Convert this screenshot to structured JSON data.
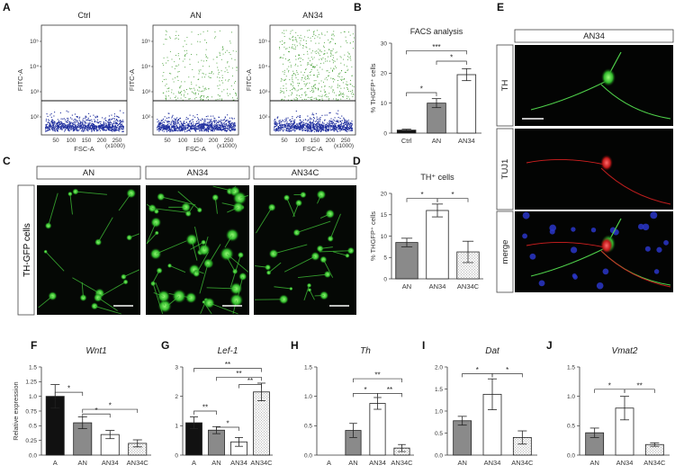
{
  "panels": {
    "A": {
      "label": "A",
      "plots": [
        {
          "title": "Ctrl",
          "ylabel": "FITC-A",
          "xlabel": "FSC-A",
          "density": 0.0
        },
        {
          "title": "AN",
          "ylabel": "FITC-A",
          "xlabel": "FSC-A",
          "density": 0.55
        },
        {
          "title": "AN34",
          "ylabel": "FITC-A",
          "xlabel": "FSC-A",
          "density": 1.0
        }
      ],
      "xticks": [
        "50",
        "100",
        "150",
        "200",
        "250"
      ],
      "xunit": "(x1000)",
      "yticks": [
        "10²",
        "10³",
        "10⁴",
        "10⁵"
      ],
      "colors": {
        "gate_low": "#1f2e9e",
        "gate_high": "#3b9a2b"
      }
    },
    "C": {
      "label": "C",
      "side_label": "TH-GFP cells",
      "columns": [
        "AN",
        "AN34",
        "AN34C"
      ]
    },
    "E": {
      "label": "E",
      "header": "AN34",
      "rows": [
        "TH",
        "TUJ1",
        "merge"
      ]
    }
  },
  "chart_data": [
    {
      "id": "B",
      "type": "bar",
      "label": "B",
      "title": "FACS analysis",
      "categories": [
        "Ctrl",
        "AN",
        "AN34"
      ],
      "values": [
        1,
        10,
        19.5
      ],
      "errors": [
        0.3,
        1.5,
        2.0
      ],
      "ylabel": "% THGFP⁺ cells",
      "ylim": [
        0,
        30
      ],
      "yticks": [
        0,
        10,
        20,
        30
      ],
      "fills": [
        "#111111",
        "#8a8a8a",
        "#ffffff"
      ],
      "sig": [
        {
          "a": 0,
          "b": 1,
          "y": 13.5,
          "text": "*"
        },
        {
          "a": 1,
          "b": 2,
          "y": 24.0,
          "text": "*"
        },
        {
          "a": 0,
          "b": 2,
          "y": 27.5,
          "text": "***"
        }
      ]
    },
    {
      "id": "D",
      "type": "bar",
      "label": "D",
      "title": "TH⁺ cells",
      "categories": [
        "AN",
        "AN34",
        "AN34C"
      ],
      "values": [
        8.5,
        16,
        6.3
      ],
      "errors": [
        1.0,
        1.5,
        2.5
      ],
      "ylabel": "% THGFP⁺ cells",
      "ylim": [
        0,
        20
      ],
      "yticks": [
        0,
        5,
        10,
        15,
        20
      ],
      "fills": [
        "#8a8a8a",
        "#ffffff",
        "hatch"
      ],
      "sig": [
        {
          "a": 0,
          "b": 1,
          "y": 18.8,
          "text": "*"
        },
        {
          "a": 1,
          "b": 2,
          "y": 18.8,
          "text": "*"
        }
      ]
    },
    {
      "id": "F",
      "type": "bar",
      "label": "F",
      "title": "Wnt1",
      "categories": [
        "A",
        "AN",
        "AN34",
        "AN34C"
      ],
      "values": [
        1.0,
        0.55,
        0.35,
        0.2
      ],
      "errors": [
        0.2,
        0.1,
        0.07,
        0.06
      ],
      "ylabel": "Relative expression",
      "ylim": [
        0,
        1.5
      ],
      "yticks": [
        0,
        0.25,
        0.5,
        0.75,
        1.0,
        1.25,
        1.5
      ],
      "ytick_labels": [
        "0.0",
        "0.25",
        "0.5",
        "0.75",
        "1.0",
        "1.25",
        "1.5"
      ],
      "fills": [
        "#111111",
        "#8a8a8a",
        "#ffffff",
        "hatch"
      ],
      "sig": [
        {
          "a": 0,
          "b": 1,
          "y": 1.07,
          "text": "*"
        },
        {
          "a": 1,
          "b": 2,
          "y": 0.7,
          "text": "*"
        },
        {
          "a": 1,
          "b": 3,
          "y": 0.78,
          "text": "*"
        }
      ]
    },
    {
      "id": "G",
      "type": "bar",
      "label": "G",
      "title": "Lef-1",
      "categories": [
        "A",
        "AN",
        "AN34",
        "AN34C"
      ],
      "values": [
        1.1,
        0.85,
        0.45,
        2.15
      ],
      "errors": [
        0.2,
        0.12,
        0.15,
        0.3
      ],
      "ylabel": "",
      "ylim": [
        0,
        3
      ],
      "yticks": [
        0,
        1,
        2,
        3
      ],
      "fills": [
        "#111111",
        "#8a8a8a",
        "#ffffff",
        "hatch"
      ],
      "sig": [
        {
          "a": 0,
          "b": 1,
          "y": 1.5,
          "text": "**"
        },
        {
          "a": 1,
          "b": 2,
          "y": 0.95,
          "text": "*"
        },
        {
          "a": 1,
          "b": 3,
          "y": 2.65,
          "text": "**"
        },
        {
          "a": 2,
          "b": 3,
          "y": 2.4,
          "text": "**"
        },
        {
          "a": 0,
          "b": 3,
          "y": 2.95,
          "text": "**"
        }
      ]
    },
    {
      "id": "H",
      "type": "bar",
      "label": "H",
      "title": "Th",
      "categories": [
        "A",
        "AN",
        "AN34",
        "AN34C"
      ],
      "values": [
        0.0,
        0.42,
        0.88,
        0.12
      ],
      "errors": [
        0,
        0.12,
        0.1,
        0.06
      ],
      "ylabel": "",
      "ylim": [
        0,
        1.5
      ],
      "yticks": [
        0,
        0.5,
        1.0,
        1.5
      ],
      "ytick_labels": [
        "0.0",
        "0.5",
        "1.0",
        "1.5"
      ],
      "fills": [
        "#111111",
        "#8a8a8a",
        "#ffffff",
        "hatch"
      ],
      "sig": [
        {
          "a": 1,
          "b": 2,
          "y": 1.05,
          "text": "*"
        },
        {
          "a": 2,
          "b": 3,
          "y": 1.05,
          "text": "**"
        },
        {
          "a": 1,
          "b": 3,
          "y": 1.3,
          "text": "**"
        }
      ]
    },
    {
      "id": "I",
      "type": "bar",
      "label": "I",
      "title": "Dat",
      "categories": [
        "AN",
        "AN34",
        "AN34C"
      ],
      "values": [
        0.78,
        1.38,
        0.4
      ],
      "errors": [
        0.1,
        0.35,
        0.15
      ],
      "ylabel": "",
      "ylim": [
        0,
        2.0
      ],
      "yticks": [
        0,
        0.5,
        1.0,
        1.5,
        2.0
      ],
      "ytick_labels": [
        "0.0",
        "0.5",
        "1.0",
        "1.5",
        "2.0"
      ],
      "fills": [
        "#8a8a8a",
        "#ffffff",
        "hatch"
      ],
      "sig": [
        {
          "a": 0,
          "b": 1,
          "y": 1.85,
          "text": "*"
        },
        {
          "a": 1,
          "b": 2,
          "y": 1.85,
          "text": "*"
        }
      ]
    },
    {
      "id": "J",
      "type": "bar",
      "label": "J",
      "title": "Vmat2",
      "categories": [
        "AN",
        "AN34",
        "AN34C"
      ],
      "values": [
        0.38,
        0.8,
        0.18
      ],
      "errors": [
        0.08,
        0.2,
        0.03
      ],
      "ylabel": "",
      "ylim": [
        0,
        1.5
      ],
      "yticks": [
        0,
        0.5,
        1.0,
        1.5
      ],
      "ytick_labels": [
        "0.0",
        "0.5",
        "1.0",
        "1.5"
      ],
      "fills": [
        "#8a8a8a",
        "#ffffff",
        "hatch"
      ],
      "sig": [
        {
          "a": 0,
          "b": 1,
          "y": 1.12,
          "text": "*"
        },
        {
          "a": 1,
          "b": 2,
          "y": 1.12,
          "text": "**"
        }
      ]
    }
  ],
  "scale_bar_color": "#ffffff"
}
